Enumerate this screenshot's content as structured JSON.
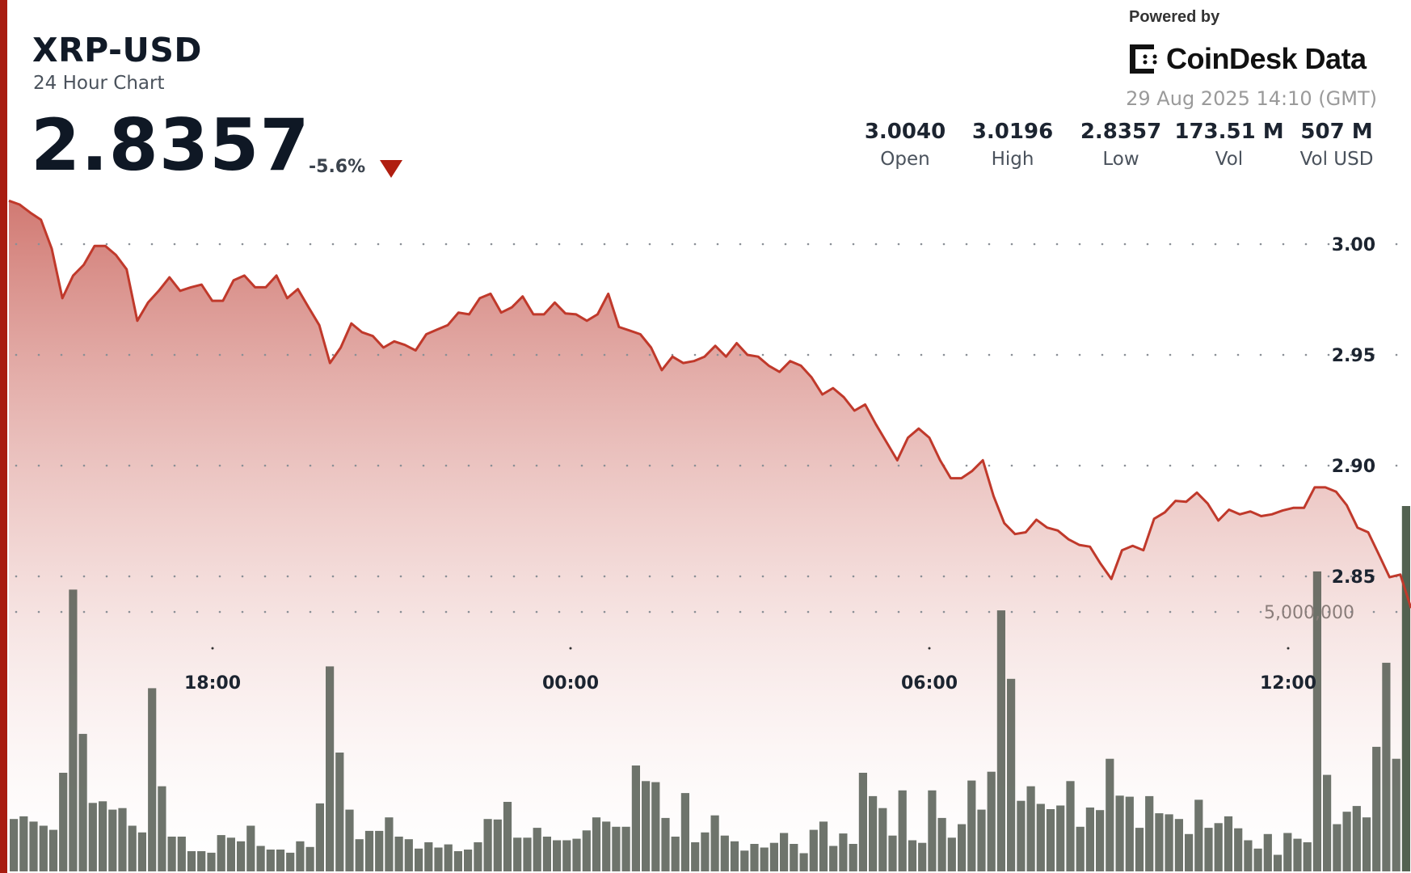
{
  "header": {
    "pair": "XRP-USD",
    "subtitle": "24 Hour Chart",
    "price": "2.8357",
    "change": "-5.6%",
    "change_direction": "down-triangle-icon"
  },
  "branding": {
    "powered_by": "Powered by",
    "logo_text": "CoinDesk Data",
    "timestamp": "29 Aug 2025 14:10 (GMT)"
  },
  "stats": [
    {
      "value": "3.0040",
      "label": "Open"
    },
    {
      "value": "3.0196",
      "label": "High"
    },
    {
      "value": "2.8357",
      "label": "Low"
    },
    {
      "value": "173.51 M",
      "label": "Vol"
    },
    {
      "value": "507 M",
      "label": "Vol USD"
    }
  ],
  "colors": {
    "accent": "#a81c10",
    "line": "#c0392b",
    "fill_top": "#c9625a",
    "volume_bar": "#555c52",
    "volume_bar_latest": "#4a5a48",
    "text": "#111a27"
  },
  "chart_data": {
    "type": "line",
    "title": "",
    "x_tick_labels": [
      "18:00",
      "00:00",
      "06:00",
      "12:00"
    ],
    "y_tick_labels": [
      "3.00",
      "2.95",
      "2.90",
      "2.85"
    ],
    "y_ticks": [
      3.0,
      2.95,
      2.9,
      2.85
    ],
    "ylim": [
      2.835,
      3.02
    ],
    "volume_tick_label": "5,000,000",
    "volume_tick": 5000000,
    "grid": "dotted-horizontal",
    "price": [
      3.0196,
      3.0179,
      3.0142,
      3.011,
      2.998,
      2.9756,
      2.9858,
      2.9907,
      2.9992,
      2.9992,
      2.9951,
      2.9886,
      2.9654,
      2.9736,
      2.9789,
      2.985,
      2.9789,
      2.9805,
      2.9817,
      2.9744,
      2.9744,
      2.9837,
      2.9858,
      2.9805,
      2.9805,
      2.9858,
      2.9756,
      2.9797,
      2.9715,
      2.9634,
      2.9463,
      2.9533,
      2.9642,
      2.9602,
      2.9585,
      2.9533,
      2.9561,
      2.9545,
      2.952,
      2.9593,
      2.9614,
      2.9634,
      2.9691,
      2.9683,
      2.9756,
      2.9776,
      2.9691,
      2.9715,
      2.9764,
      2.9683,
      2.9683,
      2.9736,
      2.9687,
      2.9683,
      2.9654,
      2.9683,
      2.9776,
      2.9626,
      2.961,
      2.9593,
      2.9533,
      2.9431,
      2.9492,
      2.9463,
      2.9472,
      2.9492,
      2.9541,
      2.9492,
      2.9553,
      2.95,
      2.9492,
      2.9451,
      2.9423,
      2.9472,
      2.9451,
      2.9398,
      2.9321,
      2.935,
      2.9309,
      2.9248,
      2.9276,
      2.9187,
      2.9106,
      2.9024,
      2.9126,
      2.9167,
      2.9126,
      2.9024,
      2.8943,
      2.8943,
      2.8976,
      2.9024,
      2.8862,
      2.874,
      2.8691,
      2.8699,
      2.8756,
      2.872,
      2.8707,
      2.8667,
      2.8642,
      2.8634,
      2.8557,
      2.8488,
      2.8618,
      2.8638,
      2.8618,
      2.876,
      2.8789,
      2.8841,
      2.8837,
      2.8878,
      2.8829,
      2.8752,
      2.8801,
      2.878,
      2.8793,
      2.8772,
      2.878,
      2.8797,
      2.8809,
      2.8809,
      2.8902,
      2.8902,
      2.8882,
      2.8821,
      2.872,
      2.8699,
      2.8598,
      2.8496,
      2.8508,
      2.8357
    ],
    "volume_millions": [
      1.01,
      1.06,
      0.96,
      0.88,
      0.8,
      1.9,
      5.43,
      2.65,
      1.32,
      1.35,
      1.19,
      1.22,
      0.88,
      0.75,
      3.53,
      1.64,
      0.67,
      0.67,
      0.39,
      0.39,
      0.36,
      0.7,
      0.65,
      0.58,
      0.88,
      0.49,
      0.42,
      0.42,
      0.36,
      0.58,
      0.47,
      1.31,
      3.95,
      2.29,
      1.19,
      0.62,
      0.78,
      0.78,
      1.04,
      0.67,
      0.62,
      0.44,
      0.56,
      0.46,
      0.52,
      0.39,
      0.42,
      0.56,
      1.01,
      1.0,
      1.34,
      0.65,
      0.65,
      0.84,
      0.67,
      0.6,
      0.6,
      0.63,
      0.79,
      1.04,
      0.96,
      0.86,
      0.86,
      2.04,
      1.74,
      1.72,
      1.03,
      0.67,
      1.51,
      0.56,
      0.75,
      1.08,
      0.69,
      0.58,
      0.4,
      0.53,
      0.46,
      0.55,
      0.74,
      0.53,
      0.35,
      0.8,
      0.96,
      0.49,
      0.73,
      0.53,
      1.9,
      1.45,
      1.22,
      0.69,
      1.56,
      0.6,
      0.55,
      1.56,
      1.03,
      0.65,
      0.91,
      1.75,
      1.19,
      1.92,
      5.03,
      3.71,
      1.36,
      1.64,
      1.3,
      1.2,
      1.27,
      1.74,
      0.86,
      1.23,
      1.18,
      2.17,
      1.46,
      1.44,
      0.84,
      1.45,
      1.12,
      1.1,
      1.01,
      0.72,
      1.38,
      0.84,
      0.93,
      1.06,
      0.83,
      0.6,
      0.44,
      0.72,
      0.32,
      0.74,
      0.63,
      0.56,
      5.78,
      1.86,
      0.91,
      1.15,
      1.26,
      1.04,
      2.4,
      4.02,
      2.17,
      7.04
    ]
  }
}
